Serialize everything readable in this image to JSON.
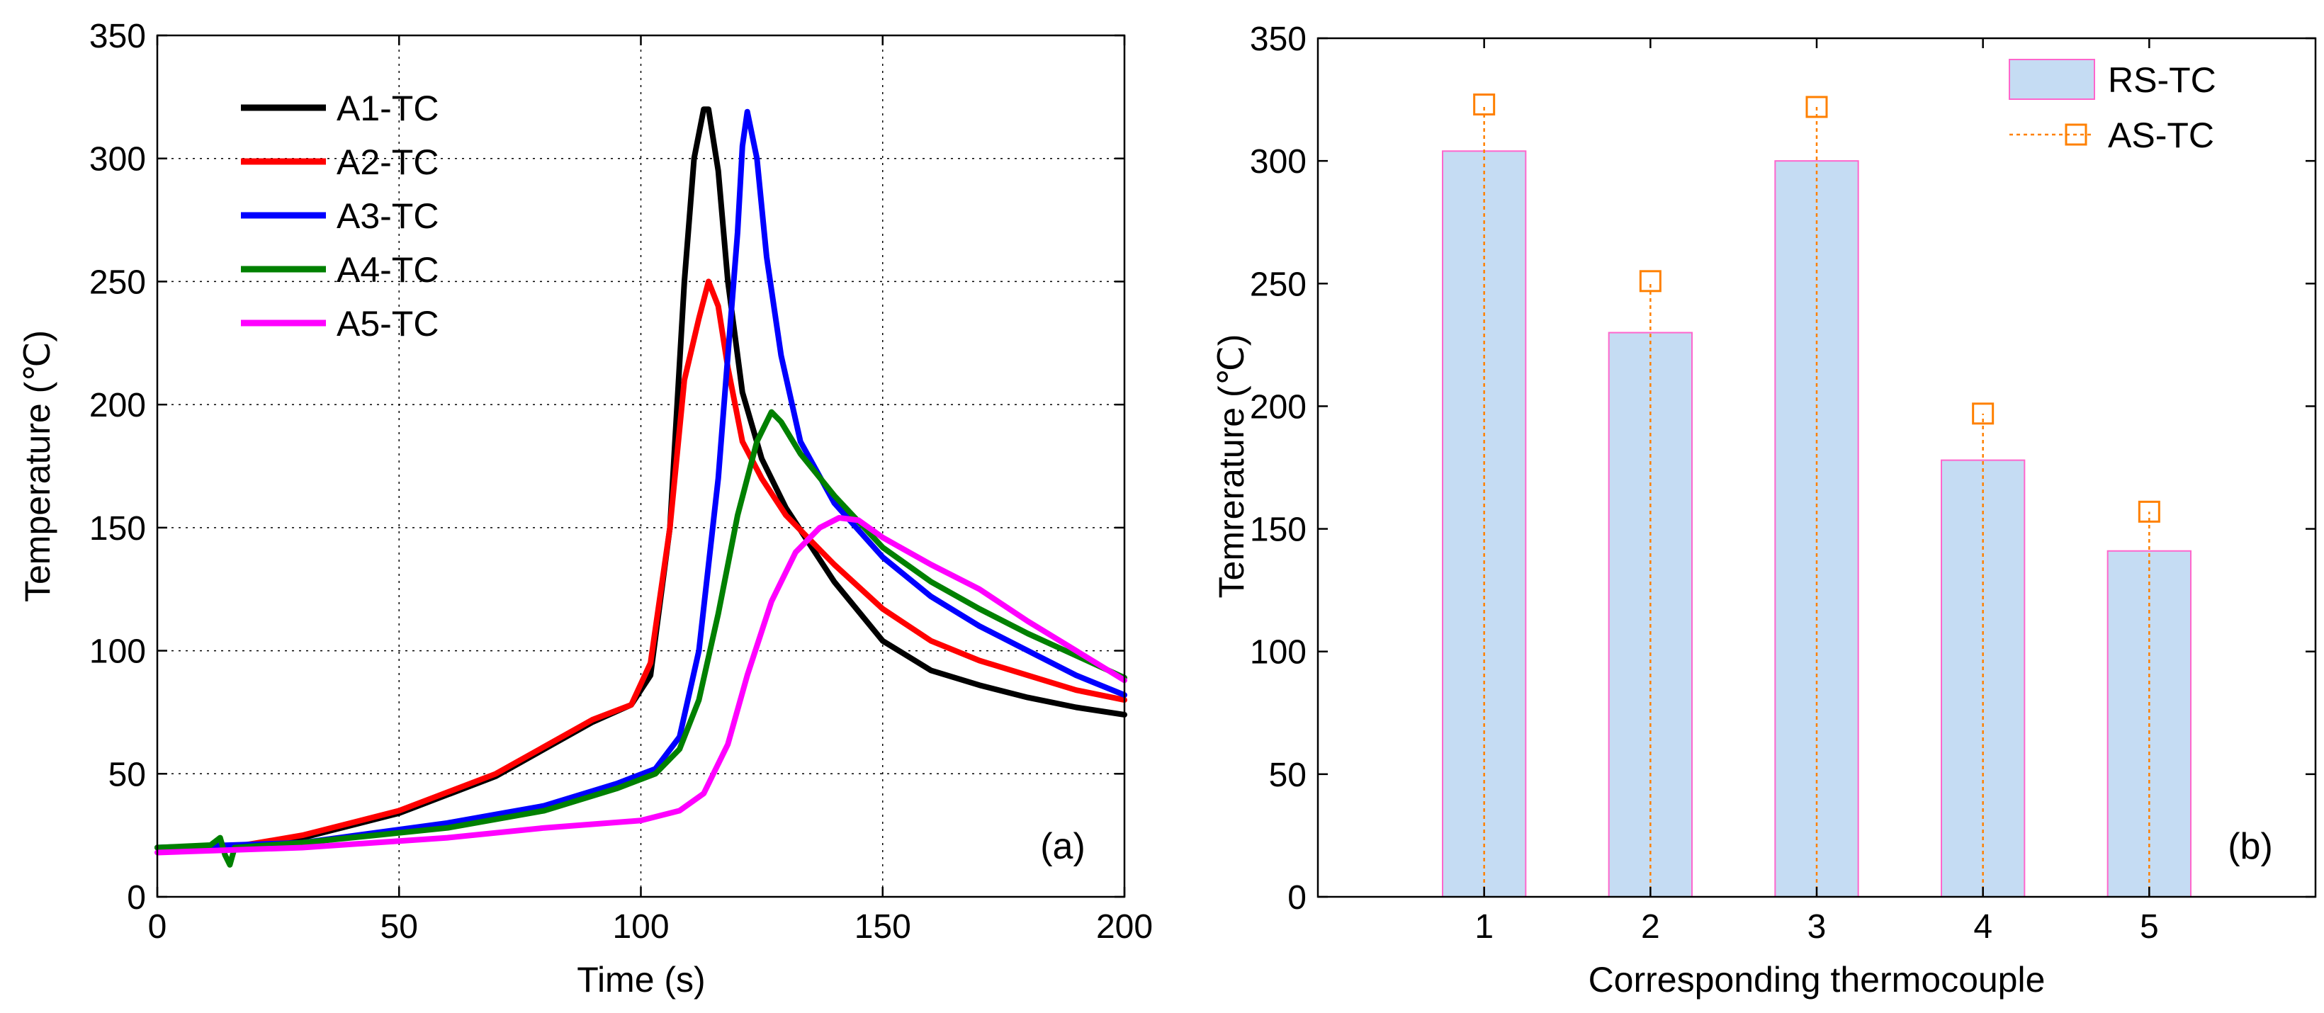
{
  "colors": {
    "A1-TC": "#000000",
    "A2-TC": "#ff0000",
    "A3-TC": "#0000ff",
    "A4-TC": "#008000",
    "A5-TC": "#ff00ff",
    "bar_fill": "#c5dcf3",
    "bar_edge": "#ff66cc",
    "marker": "#ff8000"
  },
  "chart_data": [
    {
      "type": "line",
      "panel_label": "(a)",
      "xlabel": "Time (s)",
      "ylabel": "Temperature (℃)",
      "xlim": [
        0,
        200
      ],
      "ylim": [
        0,
        350
      ],
      "xticks": [
        0,
        50,
        100,
        150,
        200
      ],
      "yticks": [
        0,
        50,
        100,
        150,
        200,
        250,
        300,
        350
      ],
      "grid": true,
      "legend_position": "top-left",
      "series": [
        {
          "name": "A1-TC",
          "points": [
            [
              0,
              20
            ],
            [
              15,
              20
            ],
            [
              30,
              24
            ],
            [
              50,
              34
            ],
            [
              70,
              49
            ],
            [
              90,
              71
            ],
            [
              98,
              78
            ],
            [
              102,
              90
            ],
            [
              106,
              150
            ],
            [
              109,
              250
            ],
            [
              111,
              300
            ],
            [
              113,
              320
            ],
            [
              114,
              320
            ],
            [
              116,
              295
            ],
            [
              118,
              250
            ],
            [
              121,
              205
            ],
            [
              125,
              178
            ],
            [
              130,
              158
            ],
            [
              140,
              128
            ],
            [
              150,
              104
            ],
            [
              160,
              92
            ],
            [
              170,
              86
            ],
            [
              180,
              81
            ],
            [
              190,
              77
            ],
            [
              200,
              74
            ]
          ]
        },
        {
          "name": "A2-TC",
          "points": [
            [
              0,
              20
            ],
            [
              15,
              20
            ],
            [
              30,
              25
            ],
            [
              50,
              35
            ],
            [
              70,
              50
            ],
            [
              90,
              72
            ],
            [
              98,
              78
            ],
            [
              102,
              95
            ],
            [
              106,
              150
            ],
            [
              109,
              210
            ],
            [
              112,
              235
            ],
            [
              114,
              250
            ],
            [
              116,
              240
            ],
            [
              118,
              215
            ],
            [
              121,
              185
            ],
            [
              125,
              170
            ],
            [
              130,
              155
            ],
            [
              140,
              135
            ],
            [
              150,
              117
            ],
            [
              160,
              104
            ],
            [
              170,
              96
            ],
            [
              180,
              90
            ],
            [
              190,
              84
            ],
            [
              200,
              80
            ]
          ]
        },
        {
          "name": "A3-TC",
          "points": [
            [
              0,
              20
            ],
            [
              30,
              22
            ],
            [
              60,
              30
            ],
            [
              80,
              37
            ],
            [
              95,
              46
            ],
            [
              103,
              52
            ],
            [
              108,
              65
            ],
            [
              112,
              100
            ],
            [
              116,
              170
            ],
            [
              118,
              220
            ],
            [
              120,
              270
            ],
            [
              121,
              305
            ],
            [
              122,
              319
            ],
            [
              124,
              300
            ],
            [
              126,
              260
            ],
            [
              129,
              220
            ],
            [
              133,
              185
            ],
            [
              140,
              160
            ],
            [
              150,
              138
            ],
            [
              160,
              122
            ],
            [
              170,
              110
            ],
            [
              180,
              100
            ],
            [
              190,
              90
            ],
            [
              200,
              82
            ]
          ]
        },
        {
          "name": "A4-TC",
          "points": [
            [
              0,
              20
            ],
            [
              11,
              21
            ],
            [
              13,
              24
            ],
            [
              14,
              17
            ],
            [
              15,
              13
            ],
            [
              16,
              20
            ],
            [
              30,
              22
            ],
            [
              60,
              28
            ],
            [
              80,
              35
            ],
            [
              95,
              44
            ],
            [
              103,
              50
            ],
            [
              108,
              60
            ],
            [
              112,
              80
            ],
            [
              116,
              115
            ],
            [
              120,
              155
            ],
            [
              124,
              185
            ],
            [
              127,
              197
            ],
            [
              129,
              193
            ],
            [
              133,
              180
            ],
            [
              140,
              163
            ],
            [
              150,
              142
            ],
            [
              160,
              128
            ],
            [
              170,
              117
            ],
            [
              180,
              107
            ],
            [
              190,
              98
            ],
            [
              200,
              89
            ]
          ]
        },
        {
          "name": "A5-TC",
          "points": [
            [
              0,
              18
            ],
            [
              30,
              20
            ],
            [
              60,
              24
            ],
            [
              80,
              28
            ],
            [
              100,
              31
            ],
            [
              108,
              35
            ],
            [
              113,
              42
            ],
            [
              118,
              62
            ],
            [
              122,
              90
            ],
            [
              127,
              120
            ],
            [
              132,
              140
            ],
            [
              137,
              150
            ],
            [
              141,
              154
            ],
            [
              145,
              153
            ],
            [
              150,
              146
            ],
            [
              160,
              135
            ],
            [
              170,
              125
            ],
            [
              180,
              112
            ],
            [
              190,
              100
            ],
            [
              200,
              88
            ]
          ]
        }
      ]
    },
    {
      "type": "bar",
      "panel_label": "(b)",
      "xlabel": "Corresponding thermocouple",
      "ylabel": "Temrerature (℃)",
      "categories": [
        "1",
        "2",
        "3",
        "4",
        "5"
      ],
      "xlim": [
        0,
        6
      ],
      "ylim": [
        0,
        350
      ],
      "yticks": [
        0,
        50,
        100,
        150,
        200,
        250,
        300,
        350
      ],
      "grid": false,
      "legend_position": "top-right",
      "series": [
        {
          "name": "RS-TC",
          "values": [
            304,
            230,
            300,
            178,
            141
          ]
        },
        {
          "name": "AS-TC",
          "values": [
            323,
            251,
            322,
            197,
            157
          ]
        }
      ]
    }
  ]
}
